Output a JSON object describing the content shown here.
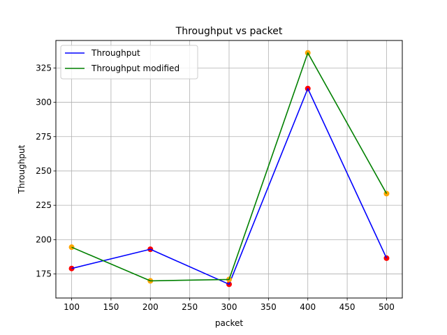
{
  "chart_data": {
    "type": "line",
    "title": "Throughput vs packet",
    "xlabel": "packet",
    "ylabel": "Throughput",
    "x": [
      100,
      200,
      300,
      400,
      500
    ],
    "xlim": [
      80,
      520
    ],
    "ylim": [
      157.5,
      345
    ],
    "xticks": [
      100,
      150,
      200,
      250,
      300,
      350,
      400,
      450,
      500
    ],
    "yticks": [
      175,
      200,
      225,
      250,
      275,
      300,
      325
    ],
    "grid": true,
    "legend_position": "top-left",
    "series": [
      {
        "name": "Throughput",
        "values": [
          179,
          193,
          167.5,
          310,
          186.5
        ],
        "line_color": "#0000ff",
        "marker_color": "#ff0000"
      },
      {
        "name": "Throughput modified",
        "values": [
          194.5,
          170,
          171,
          336,
          233.5
        ],
        "line_color": "#008000",
        "marker_color": "#ffa500"
      }
    ]
  }
}
